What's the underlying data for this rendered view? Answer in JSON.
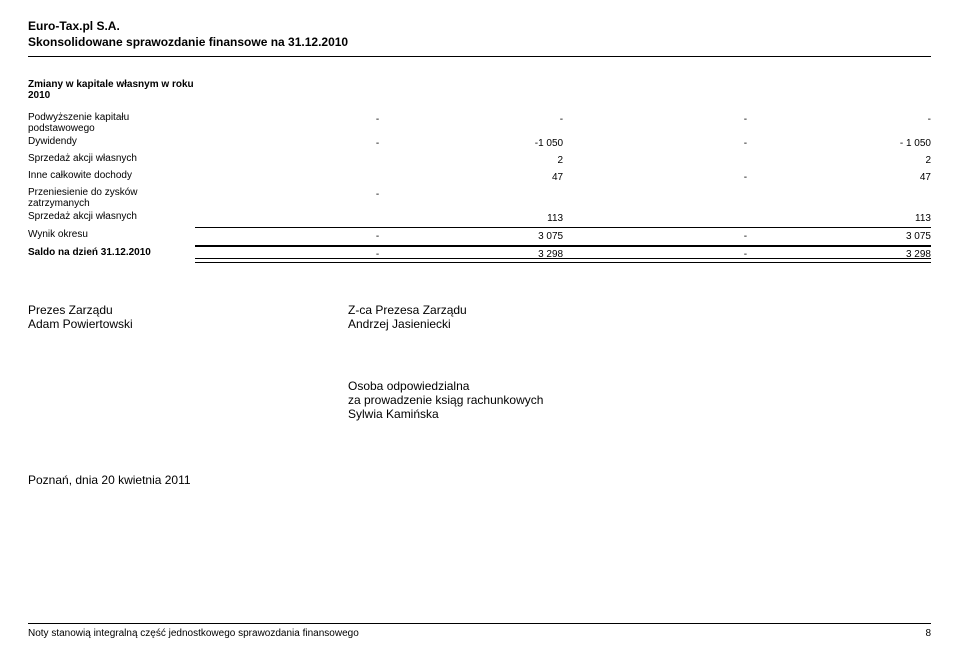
{
  "header": {
    "company": "Euro-Tax.pl S.A.",
    "report_title": "Skonsolidowane sprawozdanie finansowe na 31.12.2010"
  },
  "equity_table": {
    "section_title": "Zmiany w kapitale własnym w roku 2010",
    "rows": [
      {
        "label": "Podwyższenie kapitału podstawowego",
        "c1": "-",
        "c2": "-",
        "c3": "-",
        "c4": "-"
      },
      {
        "label": "Dywidendy",
        "c1": "-",
        "c2": "-1 050",
        "c3": "-",
        "c4": "- 1 050"
      },
      {
        "label": "Sprzedaż akcji własnych",
        "c1": "",
        "c2": "2",
        "c3": "",
        "c4": "2"
      },
      {
        "label": "Inne całkowite dochody",
        "c1": "",
        "c2": "47",
        "c3": "-",
        "c4": "47"
      },
      {
        "label": "Przeniesienie do zysków zatrzymanych",
        "c1": "-",
        "c2": "",
        "c3": "",
        "c4": ""
      },
      {
        "label": "Sprzedaż akcji własnych",
        "c1": "",
        "c2": "113",
        "c3": "",
        "c4": "113"
      }
    ],
    "subtotal": {
      "label": "Wynik okresu",
      "c1": "-",
      "c2": "3 075",
      "c3": "-",
      "c4": "3 075"
    },
    "total": {
      "label": "Saldo na dzień 31.12.2010",
      "c1": "-",
      "c2": "3 298",
      "c3": "-",
      "c4": "3 298"
    }
  },
  "signatures": {
    "left_title": "Prezes Zarządu",
    "left_name": "Adam Powiertowski",
    "right_title": "Z-ca Prezesa Zarządu",
    "right_name": "Andrzej Jasieniecki"
  },
  "responsible": {
    "line1": "Osoba odpowiedzialna",
    "line2": "za prowadzenie ksiąg rachunkowych",
    "name": "Sylwia Kamińska"
  },
  "place_date": "Poznań, dnia 20 kwietnia 2011",
  "footer": {
    "note": "Noty stanowią integralną część jednostkowego sprawozdania finansowego",
    "page": "8"
  }
}
